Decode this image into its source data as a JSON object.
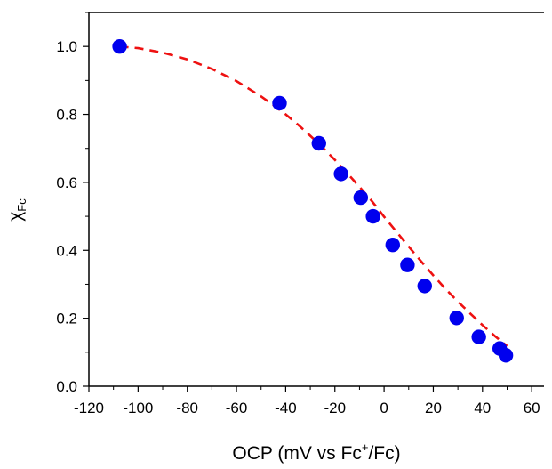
{
  "chart_data": {
    "type": "scatter",
    "xlabel": {
      "base": "OCP (mV vs Fc",
      "sup": "+",
      "tail": "/Fc)"
    },
    "ylabel": {
      "base": "χ",
      "sub": "Fc"
    },
    "xlim": [
      -120,
      65
    ],
    "ylim": [
      0,
      1.1
    ],
    "x_ticks": [
      -120,
      -100,
      -80,
      -60,
      -40,
      -20,
      0,
      20,
      40,
      60
    ],
    "x_tick_labels": [
      "-120",
      "-100",
      "-80",
      "-60",
      "-40",
      "-20",
      "0",
      "20",
      "40",
      "60"
    ],
    "y_ticks": [
      0.0,
      0.2,
      0.4,
      0.6,
      0.8,
      1.0
    ],
    "y_tick_labels": [
      "0.0",
      "0.2",
      "0.4",
      "0.6",
      "0.8",
      "1.0"
    ],
    "grid": false,
    "series": [
      {
        "kind": "markers",
        "color": "#0000ee",
        "marker": "circle",
        "x": [
          -107.5,
          -42.5,
          -26.5,
          -17.5,
          -9.5,
          -4.5,
          3.5,
          9.5,
          16.5,
          29.5,
          38.5,
          47.0,
          49.5
        ],
        "y": [
          1.0,
          0.833,
          0.715,
          0.625,
          0.555,
          0.5,
          0.416,
          0.357,
          0.295,
          0.201,
          0.145,
          0.111,
          0.091
        ]
      },
      {
        "kind": "fit-curve",
        "color": "#ee1111",
        "line_style": "dashed",
        "x": [
          -107.5,
          -100,
          -90,
          -80,
          -70,
          -60,
          -50,
          -45,
          -40,
          -35,
          -30,
          -25,
          -20,
          -15,
          -10,
          -5,
          0,
          5,
          10,
          15,
          20,
          25,
          30,
          35,
          40,
          45,
          50
        ],
        "y": [
          1.0,
          0.995,
          0.982,
          0.962,
          0.934,
          0.898,
          0.853,
          0.827,
          0.8,
          0.77,
          0.737,
          0.703,
          0.666,
          0.627,
          0.587,
          0.545,
          0.499,
          0.455,
          0.411,
          0.368,
          0.326,
          0.286,
          0.249,
          0.214,
          0.18,
          0.148,
          0.118
        ]
      }
    ]
  }
}
